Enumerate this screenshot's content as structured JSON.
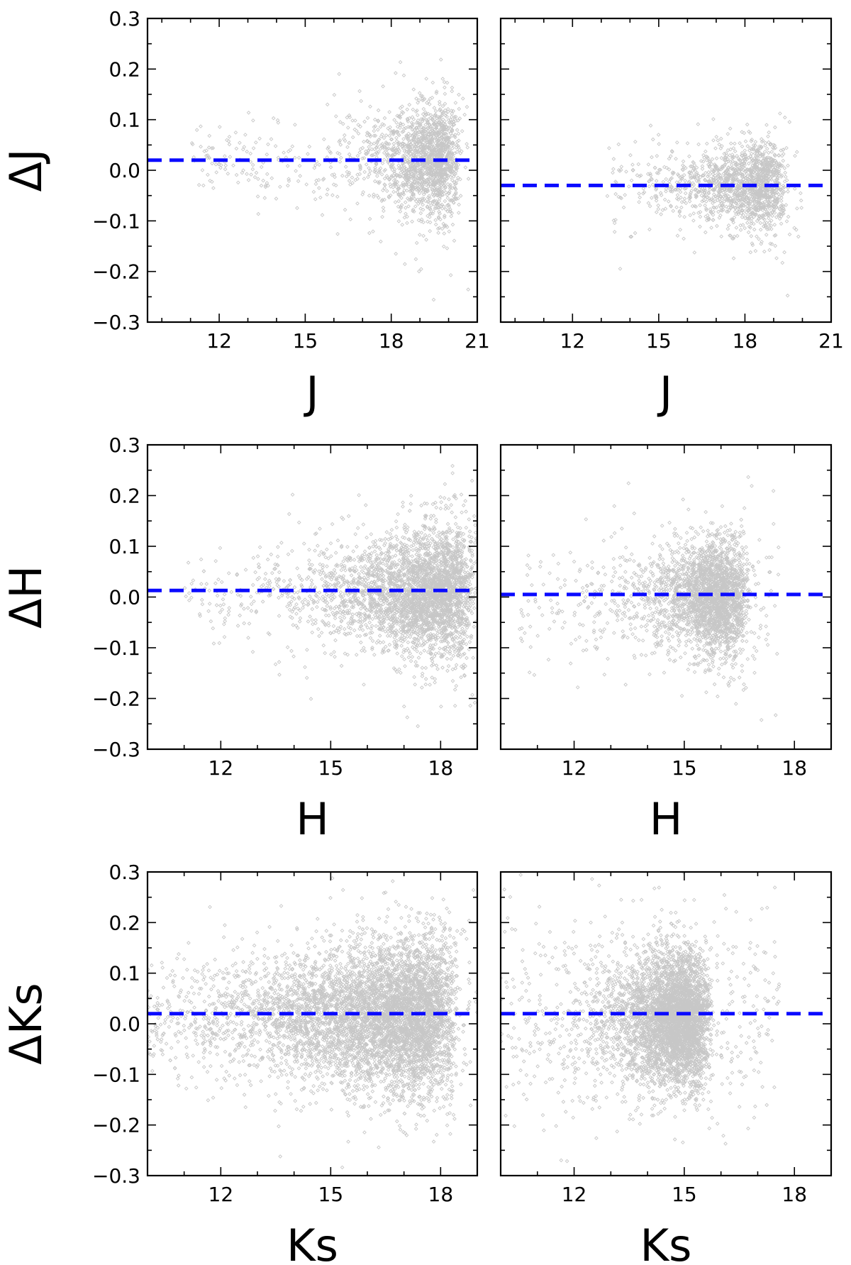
{
  "chart_data": [
    {
      "type": "scatter",
      "row": 0,
      "col": 0,
      "xlabel": "J",
      "ylabel": "ΔJ",
      "xlim": [
        9.5,
        21
      ],
      "ylim": [
        -0.3,
        0.3
      ],
      "xticks": [
        12,
        15,
        18,
        21
      ],
      "xtick_labels": [
        "12",
        "15",
        "18",
        "21"
      ],
      "yticks": [
        -0.3,
        -0.2,
        -0.1,
        0.0,
        0.1,
        0.2,
        0.3
      ],
      "ytick_labels": [
        "−0.3",
        "−0.2",
        "−0.1",
        "0.0",
        "0.1",
        "0.2",
        "0.3"
      ],
      "reference_line_y": 0.02,
      "point_distribution": {
        "x_range": [
          11.0,
          20.9
        ],
        "x_peak": 20.0,
        "x_spread": 1.1,
        "y_center": 0.02,
        "y_spread_bright": 0.015,
        "y_spread_faint": 0.06,
        "count_dense": 1600,
        "count_sparse": 250
      }
    },
    {
      "type": "scatter",
      "row": 0,
      "col": 1,
      "xlabel": "J",
      "ylabel": "",
      "xlim": [
        9.5,
        21
      ],
      "ylim": [
        -0.3,
        0.3
      ],
      "xticks": [
        12,
        15,
        18,
        21
      ],
      "xtick_labels": [
        "12",
        "15",
        "18",
        "21"
      ],
      "yticks": [
        -0.3,
        -0.2,
        -0.1,
        0.0,
        0.1,
        0.2,
        0.3
      ],
      "ytick_labels": [],
      "reference_line_y": -0.03,
      "point_distribution": {
        "x_range": [
          13.2,
          20.0
        ],
        "x_peak": 19.0,
        "x_spread": 1.3,
        "y_center": -0.03,
        "y_spread_bright": 0.03,
        "y_spread_faint": 0.045,
        "count_dense": 1400,
        "count_sparse": 150
      }
    },
    {
      "type": "scatter",
      "row": 1,
      "col": 0,
      "xlabel": "H",
      "ylabel": "ΔH",
      "xlim": [
        10,
        19
      ],
      "ylim": [
        -0.3,
        0.3
      ],
      "xticks": [
        12,
        15,
        18
      ],
      "xtick_labels": [
        "12",
        "15",
        "18"
      ],
      "yticks": [
        -0.3,
        -0.2,
        -0.1,
        0.0,
        0.1,
        0.2,
        0.3
      ],
      "ytick_labels": [
        "−0.3",
        "−0.2",
        "−0.1",
        "0.0",
        "0.1",
        "0.2",
        "0.3"
      ],
      "reference_line_y": 0.013,
      "point_distribution": {
        "x_range": [
          11.0,
          19.0
        ],
        "x_peak": 18.5,
        "x_spread": 1.4,
        "y_center": 0.01,
        "y_spread_bright": 0.02,
        "y_spread_faint": 0.07,
        "count_dense": 3200,
        "count_sparse": 300
      }
    },
    {
      "type": "scatter",
      "row": 1,
      "col": 1,
      "xlabel": "H",
      "ylabel": "",
      "xlim": [
        10,
        19
      ],
      "ylim": [
        -0.3,
        0.3
      ],
      "xticks": [
        12,
        15,
        18
      ],
      "xtick_labels": [
        "12",
        "15",
        "18"
      ],
      "yticks": [
        -0.3,
        -0.2,
        -0.1,
        0.0,
        0.1,
        0.2,
        0.3
      ],
      "ytick_labels": [],
      "reference_line_y": 0.005,
      "point_distribution": {
        "x_range": [
          10.5,
          17.6
        ],
        "x_peak": 16.3,
        "x_spread": 0.9,
        "y_center": 0.0,
        "y_spread_bright": 0.04,
        "y_spread_faint": 0.06,
        "count_dense": 2400,
        "count_sparse": 300
      }
    },
    {
      "type": "scatter",
      "row": 2,
      "col": 0,
      "xlabel": "Ks",
      "ylabel": "ΔKs",
      "xlim": [
        10,
        19
      ],
      "ylim": [
        -0.3,
        0.3
      ],
      "xticks": [
        12,
        15,
        18
      ],
      "xtick_labels": [
        "12",
        "15",
        "18"
      ],
      "yticks": [
        -0.3,
        -0.2,
        -0.1,
        0.0,
        0.1,
        0.2,
        0.3
      ],
      "ytick_labels": [
        "−0.3",
        "−0.2",
        "−0.1",
        "0.0",
        "0.1",
        "0.2",
        "0.3"
      ],
      "reference_line_y": 0.02,
      "point_distribution": {
        "x_range": [
          10.0,
          19.0
        ],
        "x_peak": 18.0,
        "x_spread": 2.2,
        "y_center": 0.015,
        "y_spread_bright": 0.04,
        "y_spread_faint": 0.085,
        "count_dense": 5200,
        "count_sparse": 500
      }
    },
    {
      "type": "scatter",
      "row": 2,
      "col": 1,
      "xlabel": "Ks",
      "ylabel": "",
      "xlim": [
        10,
        19
      ],
      "ylim": [
        -0.3,
        0.3
      ],
      "xticks": [
        12,
        15,
        18
      ],
      "xtick_labels": [
        "12",
        "15",
        "18"
      ],
      "yticks": [
        -0.3,
        -0.2,
        -0.1,
        0.0,
        0.1,
        0.2,
        0.3
      ],
      "ytick_labels": [],
      "reference_line_y": 0.02,
      "point_distribution": {
        "x_range": [
          10.0,
          17.6
        ],
        "x_peak": 15.3,
        "x_spread": 0.9,
        "y_center": 0.01,
        "y_spread_bright": 0.06,
        "y_spread_faint": 0.07,
        "count_dense": 4000,
        "count_sparse": 500
      }
    }
  ],
  "colors": {
    "points": "#000000",
    "reference_line": "#0a0aff",
    "frame": "#000000",
    "background": "#ffffff"
  }
}
